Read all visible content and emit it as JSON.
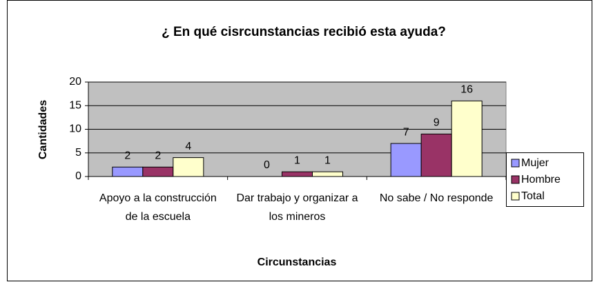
{
  "chart_data": {
    "type": "bar",
    "title": "¿ En qué cisrcunstancias recibió esta ayuda?",
    "x_label": "Circunstancias",
    "y_label": "Cantidades",
    "categories": [
      "Apoyo a la construcción de la escuela",
      "Dar trabajo y organizar a los mineros",
      "No sabe / No responde"
    ],
    "series": [
      {
        "name": "Mujer",
        "color": "#9999ff",
        "values": [
          2,
          0,
          7
        ]
      },
      {
        "name": "Hombre",
        "color": "#993366",
        "values": [
          2,
          1,
          9
        ]
      },
      {
        "name": "Total",
        "color": "#ffffcc",
        "values": [
          4,
          1,
          16
        ]
      }
    ],
    "ylim": [
      0,
      20
    ],
    "yticks": [
      0,
      5,
      10,
      15,
      20
    ],
    "grid": true,
    "legend": "right"
  }
}
